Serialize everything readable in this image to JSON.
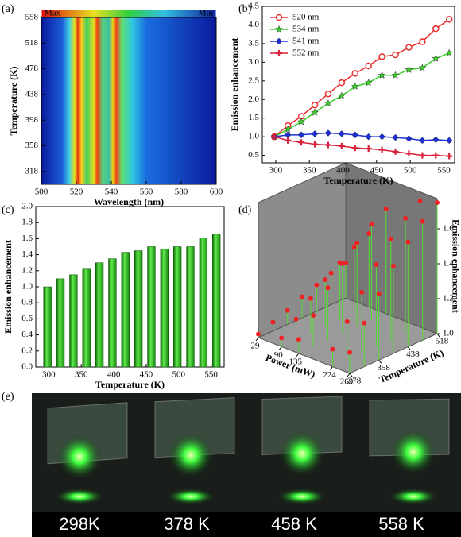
{
  "panel_labels": [
    "(a)",
    "(b)",
    "(c)",
    "(d)",
    "(e)"
  ],
  "chart_data": [
    {
      "type": "heatmap",
      "xlabel": "Wavelength (nm)",
      "ylabel": "Temperature (K)",
      "colorbar_labels": [
        "Max",
        "Min"
      ],
      "xlim": [
        500,
        600
      ],
      "xticks": [
        500,
        520,
        540,
        560,
        580,
        600
      ],
      "ylim": [
        298,
        558
      ],
      "yticks": [
        318,
        358,
        398,
        438,
        478,
        518,
        558
      ]
    },
    {
      "type": "line",
      "xlabel": "Temperature (K)",
      "ylabel": "Emission enhancement",
      "legend": "upper-left",
      "x": [
        298,
        318,
        338,
        358,
        378,
        398,
        418,
        438,
        458,
        478,
        498,
        518,
        538,
        558
      ],
      "xlim": [
        280,
        566
      ],
      "xticks": [
        300,
        350,
        400,
        450,
        500,
        550
      ],
      "ylim": [
        0.3,
        4.5
      ],
      "yticks": [
        {
          "value": 0.5,
          "label": "0.5"
        },
        {
          "value": 1,
          "label": "1.0"
        },
        {
          "value": 1.5,
          "label": "1.5"
        },
        {
          "value": 2,
          "label": "2.0"
        },
        {
          "value": 2.5,
          "label": "2.5"
        },
        {
          "value": 3,
          "label": "3.0"
        },
        {
          "value": 3.5,
          "label": "3.5"
        },
        {
          "value": 4,
          "label": "4.0"
        },
        {
          "value": 4.5,
          "label": "4.5"
        }
      ],
      "series": [
        {
          "name": "520 nm",
          "color": "#e8312f",
          "marker": "circle",
          "values": [
            1.0,
            1.3,
            1.55,
            1.85,
            2.15,
            2.45,
            2.7,
            2.9,
            3.15,
            3.2,
            3.4,
            3.55,
            3.9,
            4.15
          ]
        },
        {
          "name": "534 nm",
          "color": "#3ccf2c",
          "marker": "star",
          "values": [
            1.0,
            1.2,
            1.4,
            1.65,
            1.9,
            2.1,
            2.35,
            2.45,
            2.65,
            2.65,
            2.8,
            2.85,
            3.1,
            3.25
          ]
        },
        {
          "name": "541 nm",
          "color": "#1d2fd6",
          "marker": "diamond",
          "values": [
            1.0,
            1.05,
            1.05,
            1.08,
            1.1,
            1.08,
            1.05,
            1.0,
            1.0,
            0.98,
            0.95,
            0.9,
            0.92,
            0.9
          ]
        },
        {
          "name": "552 nm",
          "color": "#d8203a",
          "marker": "cross",
          "values": [
            1.0,
            0.9,
            0.85,
            0.8,
            0.78,
            0.75,
            0.7,
            0.68,
            0.65,
            0.6,
            0.55,
            0.5,
            0.5,
            0.48
          ]
        }
      ]
    },
    {
      "type": "bar",
      "xlabel": "Temperature (K)",
      "ylabel": "Emission enhancement",
      "color": "#2fc51f",
      "x": [
        298,
        318,
        338,
        358,
        378,
        398,
        418,
        438,
        458,
        478,
        498,
        518,
        538,
        558
      ],
      "values": [
        1.0,
        1.1,
        1.15,
        1.22,
        1.3,
        1.35,
        1.43,
        1.45,
        1.5,
        1.47,
        1.5,
        1.5,
        1.61,
        1.66
      ],
      "xlim": [
        280,
        570
      ],
      "xticks": [
        300,
        350,
        400,
        450,
        500,
        550
      ],
      "ylim": [
        0,
        2
      ],
      "yticks": [
        {
          "value": 0,
          "label": "0.0"
        },
        {
          "value": 0.2,
          "label": "0.2"
        },
        {
          "value": 0.4,
          "label": "0.4"
        },
        {
          "value": 0.6,
          "label": "0.6"
        },
        {
          "value": 0.8,
          "label": "0.8"
        },
        {
          "value": 1,
          "label": "1.0"
        },
        {
          "value": 1.2,
          "label": "1.2"
        },
        {
          "value": 1.4,
          "label": "1.4"
        },
        {
          "value": 1.6,
          "label": "1.6"
        },
        {
          "value": 1.8,
          "label": "1.8"
        },
        {
          "value": 2,
          "label": "2.0"
        }
      ]
    },
    {
      "type": "scatter3d",
      "xlabel": "Power (mW)",
      "ylabel": "Temperature (K)",
      "zlabel": "Emission enhancement",
      "color": "#ee2222",
      "stem_color": "#55dd33",
      "xlim": [
        29,
        269
      ],
      "xticks": [
        29,
        90,
        135,
        224,
        269
      ],
      "ylim": [
        278,
        518
      ],
      "yticks": [
        278,
        358,
        438,
        518
      ],
      "zlim": [
        1,
        1.75
      ],
      "zticks": [
        {
          "value": 1,
          "label": "1.0"
        },
        {
          "value": 1.2,
          "label": "1.2"
        },
        {
          "value": 1.4,
          "label": "1.4"
        },
        {
          "value": 1.6,
          "label": "1.6"
        }
      ],
      "power": [
        29,
        29,
        29,
        29,
        29,
        29,
        29,
        90,
        90,
        90,
        90,
        90,
        90,
        90,
        135,
        135,
        135,
        135,
        135,
        135,
        135,
        224,
        224,
        224,
        224,
        224,
        224,
        224,
        269,
        269,
        269,
        269,
        269,
        269,
        269
      ],
      "temperature": [
        278,
        318,
        358,
        398,
        438,
        478,
        518,
        278,
        318,
        358,
        398,
        438,
        478,
        518,
        278,
        318,
        358,
        398,
        438,
        478,
        518,
        278,
        318,
        358,
        398,
        438,
        478,
        518,
        278,
        318,
        358,
        398,
        438,
        478,
        518
      ],
      "values": [
        1.02,
        1.05,
        1.08,
        1.12,
        1.15,
        1.18,
        1.2,
        1.05,
        1.12,
        1.2,
        1.27,
        1.33,
        1.38,
        1.42,
        1.08,
        1.18,
        1.3,
        1.4,
        1.48,
        1.55,
        1.6,
        1.1,
        1.22,
        1.35,
        1.47,
        1.58,
        1.66,
        1.72,
        1.12,
        1.25,
        1.38,
        1.5,
        1.6,
        1.68,
        1.75
      ]
    }
  ],
  "photos": {
    "labels": [
      "298K",
      "378 K",
      "458 K",
      "558 K"
    ]
  }
}
